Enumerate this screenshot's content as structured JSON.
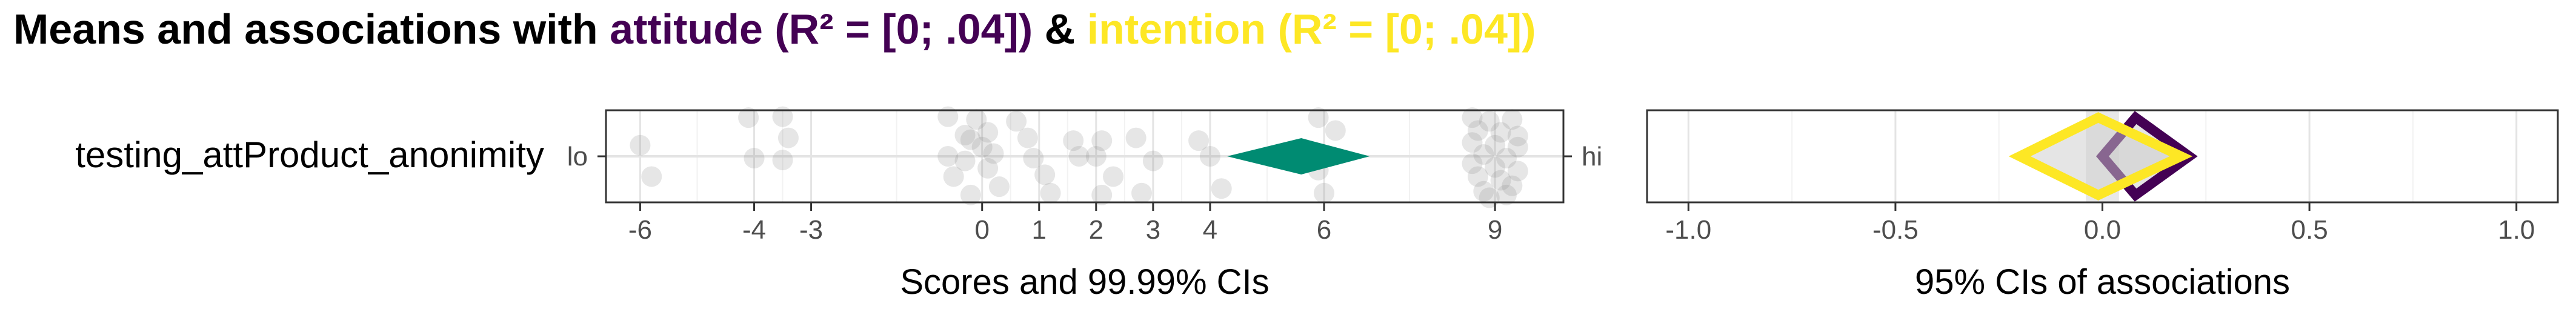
{
  "title": {
    "prefix": "Means and associations with ",
    "determinant1": "attitude (R² = [0; .04])",
    "joiner": " & ",
    "determinant2": "intention (R² = [0; .04])",
    "colors": {
      "text": "#000000",
      "attitude": "#440154",
      "intention": "#FDE725"
    }
  },
  "chart_data": [
    {
      "type": "scatter",
      "name": "scores-panel",
      "item_label": "testing_attProduct_anonimity",
      "anchor_low": "lo",
      "anchor_high": "hi",
      "xlabel": "Scores and 99.99% CIs",
      "xlim": [
        -6.6,
        10.2
      ],
      "xticks": [
        -6,
        -4,
        -3,
        0,
        1,
        2,
        3,
        4,
        6,
        9
      ],
      "xtick_labels": [
        "-6",
        "-4",
        "-3",
        "0",
        "1",
        "2",
        "3",
        "4",
        "6",
        "9"
      ],
      "grid": true,
      "points_color": "#808080",
      "points": [
        {
          "x": -6.0,
          "y": 0.38
        },
        {
          "x": -5.8,
          "y": 0.72
        },
        {
          "x": -4.1,
          "y": 0.08
        },
        {
          "x": -4.0,
          "y": 0.52
        },
        {
          "x": -3.5,
          "y": 0.07
        },
        {
          "x": -3.4,
          "y": 0.3
        },
        {
          "x": -3.5,
          "y": 0.54
        },
        {
          "x": -0.6,
          "y": 0.07
        },
        {
          "x": -0.3,
          "y": 0.27
        },
        {
          "x": -0.6,
          "y": 0.5
        },
        {
          "x": -0.5,
          "y": 0.72
        },
        {
          "x": -0.1,
          "y": 0.1
        },
        {
          "x": 0.1,
          "y": 0.24
        },
        {
          "x": -0.2,
          "y": 0.32
        },
        {
          "x": 0.0,
          "y": 0.4
        },
        {
          "x": 0.2,
          "y": 0.47
        },
        {
          "x": -0.3,
          "y": 0.55
        },
        {
          "x": 0.1,
          "y": 0.63
        },
        {
          "x": 0.3,
          "y": 0.83
        },
        {
          "x": -0.2,
          "y": 0.92
        },
        {
          "x": 0.6,
          "y": 0.12
        },
        {
          "x": 0.8,
          "y": 0.3
        },
        {
          "x": 0.9,
          "y": 0.52
        },
        {
          "x": 1.1,
          "y": 0.7
        },
        {
          "x": 1.2,
          "y": 0.9
        },
        {
          "x": 1.6,
          "y": 0.33
        },
        {
          "x": 1.7,
          "y": 0.5
        },
        {
          "x": 2.1,
          "y": 0.33
        },
        {
          "x": 2.0,
          "y": 0.5
        },
        {
          "x": 2.3,
          "y": 0.72
        },
        {
          "x": 2.1,
          "y": 0.92
        },
        {
          "x": 2.7,
          "y": 0.3
        },
        {
          "x": 3.0,
          "y": 0.55
        },
        {
          "x": 2.8,
          "y": 0.9
        },
        {
          "x": 3.8,
          "y": 0.33
        },
        {
          "x": 4.0,
          "y": 0.5
        },
        {
          "x": 4.2,
          "y": 0.85
        },
        {
          "x": 5.9,
          "y": 0.08
        },
        {
          "x": 6.2,
          "y": 0.22
        },
        {
          "x": 5.9,
          "y": 0.65
        },
        {
          "x": 6.0,
          "y": 0.9
        },
        {
          "x": 8.6,
          "y": 0.08
        },
        {
          "x": 8.9,
          "y": 0.12
        },
        {
          "x": 9.3,
          "y": 0.1
        },
        {
          "x": 8.7,
          "y": 0.22
        },
        {
          "x": 9.1,
          "y": 0.24
        },
        {
          "x": 9.4,
          "y": 0.28
        },
        {
          "x": 8.6,
          "y": 0.35
        },
        {
          "x": 9.0,
          "y": 0.38
        },
        {
          "x": 9.4,
          "y": 0.4
        },
        {
          "x": 8.8,
          "y": 0.48
        },
        {
          "x": 9.2,
          "y": 0.52
        },
        {
          "x": 8.6,
          "y": 0.58
        },
        {
          "x": 9.0,
          "y": 0.62
        },
        {
          "x": 9.4,
          "y": 0.66
        },
        {
          "x": 8.7,
          "y": 0.72
        },
        {
          "x": 9.1,
          "y": 0.76
        },
        {
          "x": 9.3,
          "y": 0.82
        },
        {
          "x": 8.8,
          "y": 0.88
        },
        {
          "x": 9.2,
          "y": 0.92
        },
        {
          "x": 8.9,
          "y": 0.95
        }
      ],
      "mean_ci": {
        "lower": 4.3,
        "mean": 5.6,
        "upper": 6.8,
        "color": "#008B72"
      }
    },
    {
      "type": "scatter",
      "name": "associations-panel",
      "xlabel": "95% CIs of associations",
      "xlim": [
        -1.1,
        1.1
      ],
      "xticks": [
        -1.0,
        -0.5,
        0.0,
        0.5,
        1.0
      ],
      "xtick_labels": [
        "-1.0",
        "-0.5",
        "0.0",
        "0.5",
        "1.0"
      ],
      "grid": true,
      "zero_band": {
        "lower": -0.04,
        "upper": 0.04
      },
      "series": [
        {
          "name": "attitude",
          "lower": 0.0,
          "point": 0.08,
          "upper": 0.21,
          "color": "#440154"
        },
        {
          "name": "intention",
          "lower": -0.2,
          "point": -0.01,
          "upper": 0.19,
          "color": "#FDE725"
        }
      ]
    }
  ]
}
